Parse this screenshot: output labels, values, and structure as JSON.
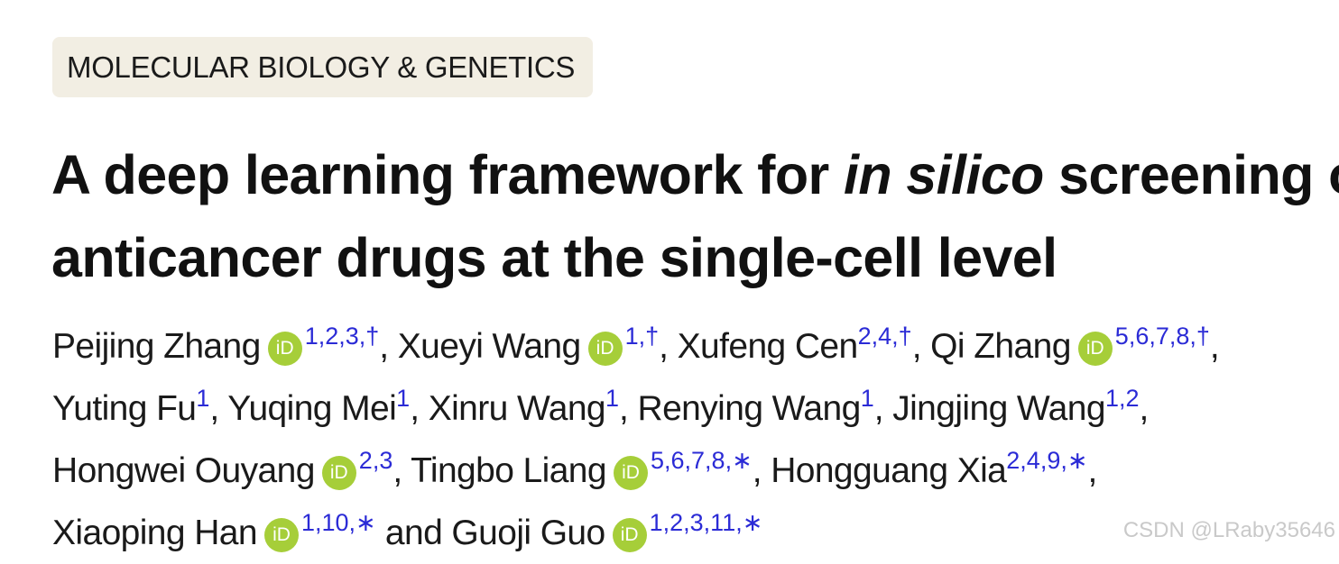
{
  "category": "MOLECULAR BIOLOGY & GENETICS",
  "title": {
    "line1_a": "A deep learning framework for ",
    "line1_italic": "in silico",
    "line1_b": " screening of",
    "line2": "anticancer drugs at the single-cell level"
  },
  "authors": [
    {
      "name": "Peijing Zhang",
      "orcid": true,
      "aff": "1,2,3,†"
    },
    {
      "name": "Xueyi Wang",
      "orcid": true,
      "aff": "1,†"
    },
    {
      "name": "Xufeng Cen",
      "orcid": false,
      "aff": "2,4,†"
    },
    {
      "name": "Qi Zhang",
      "orcid": true,
      "aff": "5,6,7,8,†"
    },
    {
      "name": "Yuting Fu",
      "orcid": false,
      "aff": "1"
    },
    {
      "name": "Yuqing Mei",
      "orcid": false,
      "aff": "1"
    },
    {
      "name": "Xinru Wang",
      "orcid": false,
      "aff": "1"
    },
    {
      "name": "Renying Wang",
      "orcid": false,
      "aff": "1"
    },
    {
      "name": "Jingjing Wang",
      "orcid": false,
      "aff": "1,2"
    },
    {
      "name": "Hongwei Ouyang",
      "orcid": true,
      "aff": "2,3"
    },
    {
      "name": "Tingbo Liang",
      "orcid": true,
      "aff": "5,6,7,8,∗"
    },
    {
      "name": "Hongguang Xia",
      "orcid": false,
      "aff": "2,4,9,∗"
    },
    {
      "name": "Xiaoping Han",
      "orcid": true,
      "aff": "1,10,∗"
    },
    {
      "name": "Guoji Guo",
      "orcid": true,
      "aff": "1,2,3,11,∗"
    }
  ],
  "orcid_label": "iD",
  "separators": {
    "comma": ", ",
    "and": " and "
  },
  "watermark": "CSDN @LRaby35646",
  "colors": {
    "badge_bg": "#f2eee3",
    "orcid_green": "#a6ce39",
    "affiliation_blue": "#2b2bd6"
  }
}
